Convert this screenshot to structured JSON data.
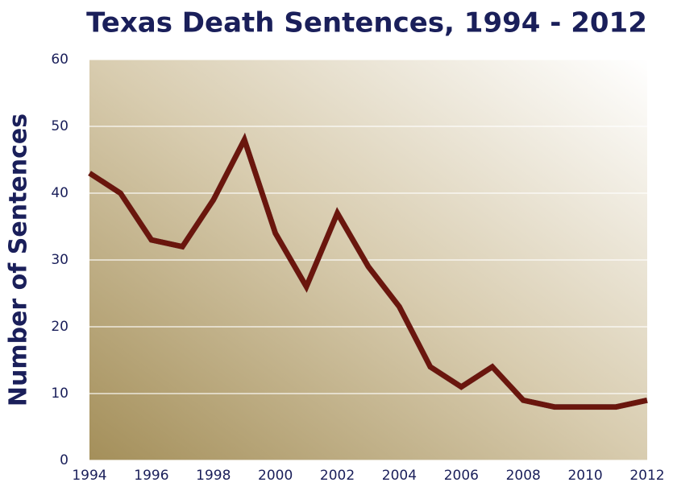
{
  "chart_data": {
    "type": "line",
    "title": "Texas Death Sentences, 1994 - 2012",
    "y_label": "Number of Sentences",
    "x": [
      1994,
      1995,
      1996,
      1997,
      1998,
      1999,
      2000,
      2001,
      2002,
      2003,
      2004,
      2005,
      2006,
      2007,
      2008,
      2009,
      2010,
      2011,
      2012
    ],
    "series": [
      {
        "name": "Death sentences",
        "color": "#6b1808",
        "values": [
          43,
          40,
          33,
          32,
          39,
          48,
          34,
          26,
          37,
          29,
          23,
          14,
          11,
          14,
          9,
          8,
          8,
          8,
          9
        ]
      }
    ],
    "xlim": [
      1994,
      2012
    ],
    "xticks": [
      1994,
      1996,
      1998,
      2000,
      2002,
      2004,
      2006,
      2008,
      2010,
      2012
    ],
    "ylim": [
      0,
      60
    ],
    "yticks": [
      0,
      10,
      20,
      30,
      40,
      50,
      60
    ],
    "grid": true
  }
}
